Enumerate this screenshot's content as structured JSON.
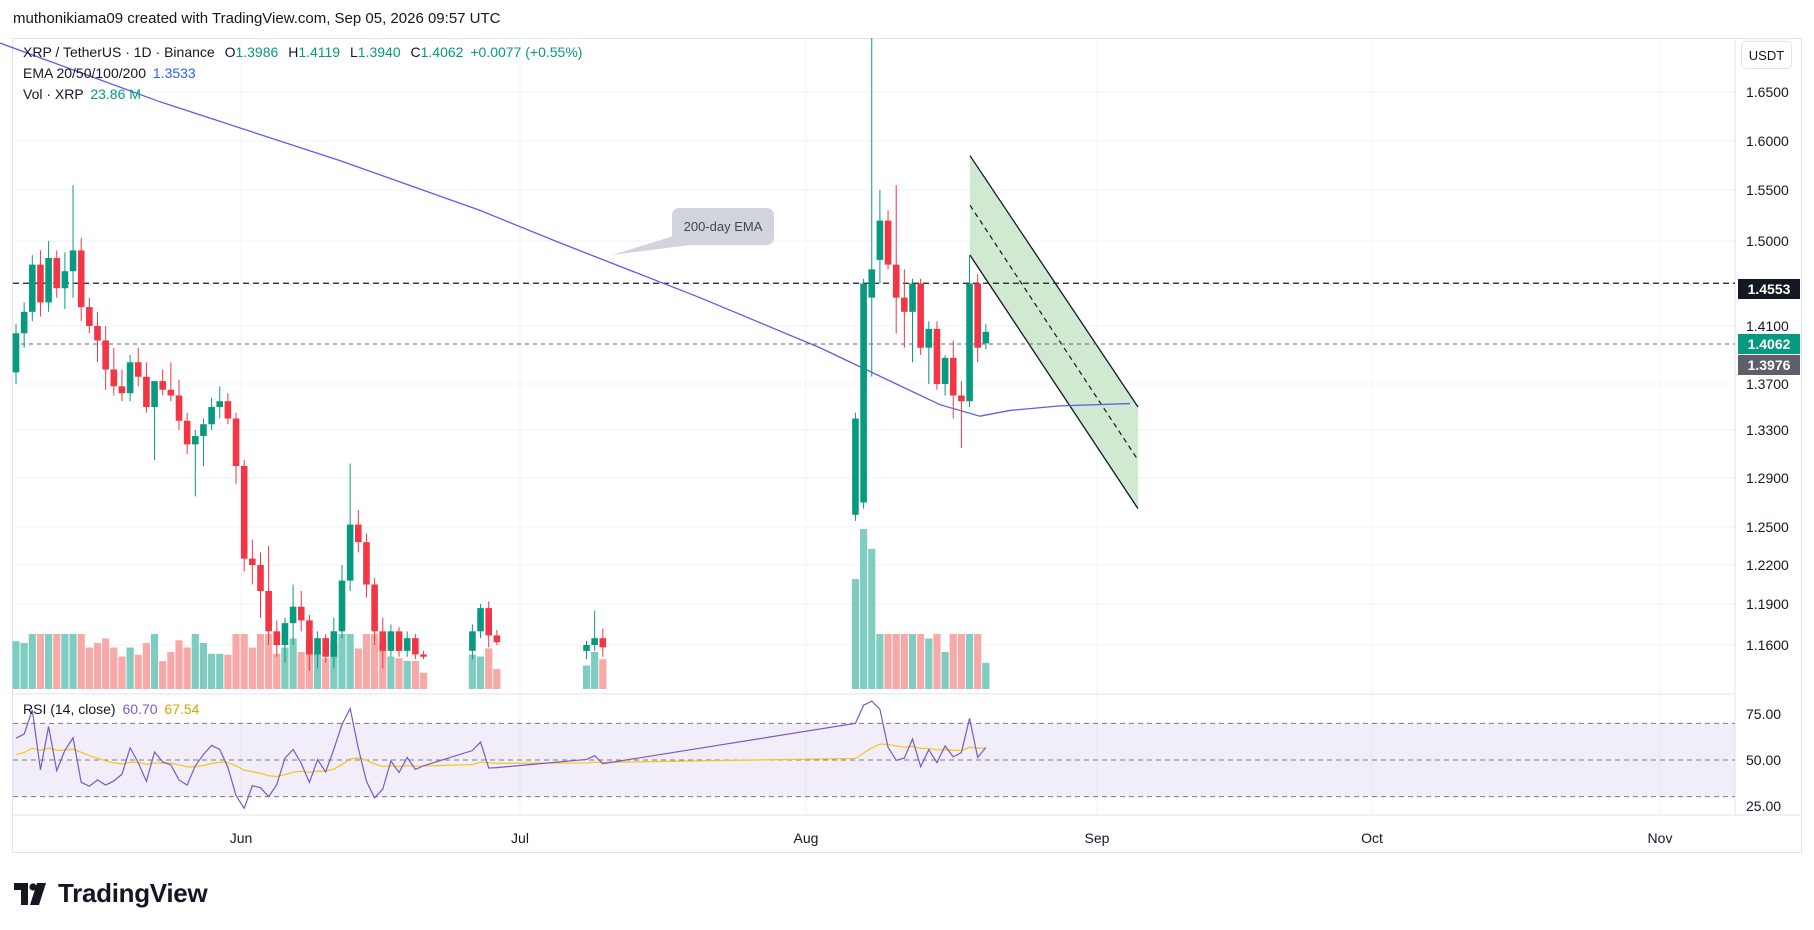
{
  "header": {
    "caption": "muthonikiama09 created with TradingView.com, Sep 05, 2026 09:57 UTC"
  },
  "legend": {
    "symbol": "XRP / TetherUS · 1D · Binance",
    "o_k": "O",
    "o_v": "1.3986",
    "h_k": "H",
    "h_v": "1.4119",
    "l_k": "L",
    "l_v": "1.3940",
    "c_k": "C",
    "c_v": "1.4062",
    "change": "+0.0077 (+0.55%)",
    "ema_label": "EMA 20/50/100/200",
    "ema_value": "1.3533",
    "vol_label": "Vol · XRP",
    "vol_value": "23.86 M",
    "rsi_label": "RSI (14, close)",
    "rsi_value": "60.70",
    "rsi_ma_value": "67.54"
  },
  "currency": "USDT",
  "price_tags": {
    "resistance": "1.4553",
    "last": "1.4062",
    "support": "1.3976"
  },
  "annotation": "200-day EMA",
  "logo": {
    "text": "TradingView"
  },
  "colors": {
    "up": "#089981",
    "down": "#f23645",
    "up_vol": "#7fcdc1",
    "down_vol": "#f7a9a7",
    "ema": "#5b5fe6",
    "rsi": "#7e57c2",
    "rsi_ma": "#f5c518",
    "channel_fill": "#c8e6c9",
    "resistance_tag": "#131722",
    "last_tag": "#089981",
    "support_tag": "#5d606b"
  },
  "chart_data": [
    {
      "type": "candlestick",
      "title": "XRP / TetherUS · 1D · Binance",
      "y_axis_ticks": [
        "1.6500",
        "1.6000",
        "1.5500",
        "1.5000",
        "1.4100",
        "1.3700",
        "1.3300",
        "1.2900",
        "1.2500",
        "1.2200",
        "1.1900",
        "1.1600"
      ],
      "x_axis_ticks": [
        "Jun",
        "Jul",
        "Aug",
        "Sep",
        "Oct",
        "Nov"
      ],
      "ohlc": [
        [
          1.378,
          1.412,
          1.37,
          1.405
        ],
        [
          1.405,
          1.435,
          1.395,
          1.425
        ],
        [
          1.425,
          1.485,
          1.415,
          1.475
        ],
        [
          1.475,
          1.49,
          1.42,
          1.435
        ],
        [
          1.435,
          1.5,
          1.425,
          1.482
        ],
        [
          1.482,
          1.49,
          1.44,
          1.45
        ],
        [
          1.45,
          1.488,
          1.428,
          1.468
        ],
        [
          1.468,
          1.555,
          1.44,
          1.49
        ],
        [
          1.49,
          1.503,
          1.415,
          1.43
        ],
        [
          1.43,
          1.44,
          1.405,
          1.41
        ],
        [
          1.41,
          1.425,
          1.385,
          1.4
        ],
        [
          1.4,
          1.41,
          1.365,
          1.38
        ],
        [
          1.38,
          1.395,
          1.36,
          1.368
        ],
        [
          1.368,
          1.38,
          1.355,
          1.362
        ],
        [
          1.362,
          1.39,
          1.355,
          1.385
        ],
        [
          1.385,
          1.395,
          1.368,
          1.375
        ],
        [
          1.375,
          1.385,
          1.345,
          1.35
        ],
        [
          1.35,
          1.37,
          1.305,
          1.372
        ],
        [
          1.372,
          1.38,
          1.36,
          1.365
        ],
        [
          1.365,
          1.385,
          1.355,
          1.36
        ],
        [
          1.36,
          1.373,
          1.33,
          1.338
        ],
        [
          1.338,
          1.345,
          1.31,
          1.318
        ],
        [
          1.318,
          1.33,
          1.275,
          1.325
        ],
        [
          1.325,
          1.34,
          1.3,
          1.335
        ],
        [
          1.335,
          1.358,
          1.33,
          1.35
        ],
        [
          1.35,
          1.368,
          1.34,
          1.355
        ],
        [
          1.355,
          1.362,
          1.335,
          1.34
        ],
        [
          1.34,
          1.345,
          1.285,
          1.3
        ],
        [
          1.3,
          1.305,
          1.215,
          1.225
        ],
        [
          1.225,
          1.24,
          1.205,
          1.22
        ],
        [
          1.22,
          1.23,
          1.18,
          1.2
        ],
        [
          1.2,
          1.235,
          1.16,
          1.17
        ],
        [
          1.17,
          1.178,
          1.15,
          1.16
        ],
        [
          1.16,
          1.18,
          1.145,
          1.176
        ],
        [
          1.176,
          1.205,
          1.16,
          1.188
        ],
        [
          1.188,
          1.2,
          1.17,
          1.178
        ],
        [
          1.178,
          1.182,
          1.138,
          1.152
        ],
        [
          1.152,
          1.17,
          1.14,
          1.165
        ],
        [
          1.165,
          1.168,
          1.145,
          1.15
        ],
        [
          1.15,
          1.18,
          1.14,
          1.17
        ],
        [
          1.17,
          1.22,
          1.165,
          1.208
        ],
        [
          1.208,
          1.302,
          1.2,
          1.252
        ],
        [
          1.252,
          1.264,
          1.23,
          1.238
        ],
        [
          1.238,
          1.245,
          1.195,
          1.205
        ],
        [
          1.205,
          1.21,
          1.16,
          1.17
        ],
        [
          1.17,
          1.18,
          1.14,
          1.155
        ],
        [
          1.155,
          1.175,
          1.15,
          1.17
        ],
        [
          1.17,
          1.173,
          1.15,
          1.155
        ],
        [
          1.155,
          1.17,
          1.15,
          1.165
        ],
        [
          1.165,
          1.168,
          1.148,
          1.152
        ],
        [
          1.152,
          1.155,
          1.148,
          1.15
        ]
      ],
      "ohlc_group2": [
        [
          1.155,
          1.175,
          1.148,
          1.17
        ],
        [
          1.17,
          1.19,
          1.165,
          1.187
        ],
        [
          1.187,
          1.192,
          1.158,
          1.167
        ],
        [
          1.167,
          1.171,
          1.16,
          1.162
        ]
      ],
      "ohlc_group3": [
        [
          1.155,
          1.163,
          1.148,
          1.16
        ],
        [
          1.16,
          1.185,
          1.155,
          1.165
        ],
        [
          1.165,
          1.172,
          1.15,
          1.158
        ]
      ],
      "ohlc_group4": [
        [
          1.26,
          1.345,
          1.255,
          1.34
        ],
        [
          1.27,
          1.46,
          1.265,
          1.455
        ],
        [
          1.44,
          1.705,
          1.375,
          1.47
        ],
        [
          1.48,
          1.55,
          1.455,
          1.52
        ],
        [
          1.52,
          1.53,
          1.47,
          1.475
        ],
        [
          1.475,
          1.555,
          1.405,
          1.44
        ],
        [
          1.44,
          1.47,
          1.395,
          1.425
        ],
        [
          1.425,
          1.46,
          1.385,
          1.455
        ],
        [
          1.455,
          1.46,
          1.39,
          1.395
        ],
        [
          1.395,
          1.415,
          1.37,
          1.408
        ],
        [
          1.408,
          1.415,
          1.365,
          1.37
        ],
        [
          1.37,
          1.39,
          1.36,
          1.388
        ],
        [
          1.388,
          1.4,
          1.34,
          1.36
        ],
        [
          1.36,
          1.372,
          1.315,
          1.355
        ],
        [
          1.355,
          1.485,
          1.35,
          1.455
        ],
        [
          1.455,
          1.465,
          1.385,
          1.395
        ],
        [
          1.398,
          1.412,
          1.394,
          1.406
        ]
      ],
      "ema_200": [
        [
          0,
          1.7
        ],
        [
          160,
          1.64
        ],
        [
          340,
          1.58
        ],
        [
          480,
          1.53
        ],
        [
          560,
          1.498
        ],
        [
          700,
          1.44
        ],
        [
          820,
          1.395
        ],
        [
          940,
          1.352
        ],
        [
          980,
          1.342
        ],
        [
          1010,
          1.347
        ],
        [
          1060,
          1.351
        ],
        [
          1130,
          1.353
        ]
      ],
      "resistance_level": 1.4553,
      "support_level": 1.3976,
      "channel": {
        "upper": [
          [
            970,
            1.585
          ],
          [
            1138,
            1.35
          ]
        ],
        "lower": [
          [
            970,
            1.485
          ],
          [
            1138,
            1.265
          ]
        ],
        "mid": [
          [
            970,
            1.535
          ],
          [
            1138,
            1.305
          ]
        ]
      }
    },
    {
      "type": "line",
      "title": "RSI (14, close)",
      "y_axis_ticks": [
        "75.00",
        "50.00",
        "25.00"
      ],
      "bands": [
        70,
        50,
        30
      ],
      "ylim": [
        20,
        80
      ]
    }
  ]
}
